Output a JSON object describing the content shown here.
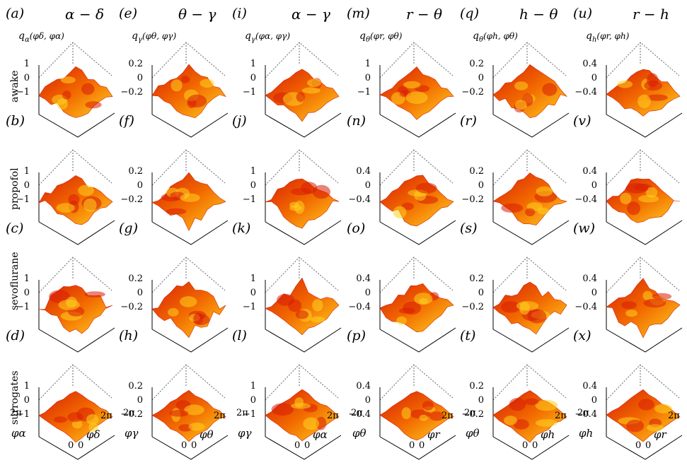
{
  "columns": [
    {
      "id": "a-d",
      "letters": [
        "(a)",
        "(b)",
        "(c)",
        "(d)"
      ],
      "title": "α − δ",
      "zlabel": "q",
      "zlabel_sub": "α",
      "zlabel_args": "(φδ, φα)",
      "x_axis": "φα",
      "y_axis": "φδ",
      "ticks_sets": [
        [
          "1",
          "0",
          "−1"
        ],
        [
          "1",
          "0",
          "−1"
        ],
        [
          "1",
          "0",
          "−1"
        ],
        [
          "1",
          "0",
          "−1"
        ]
      ]
    },
    {
      "id": "e-h",
      "letters": [
        "(e)",
        "(f)",
        "(g)",
        "(h)"
      ],
      "title": "θ − γ",
      "zlabel": "q",
      "zlabel_sub": "γ",
      "zlabel_args": "(φθ, φγ)",
      "x_axis": "φγ",
      "y_axis": "φθ",
      "ticks_sets": [
        [
          "0.2",
          "0",
          "−0.2"
        ],
        [
          "0.2",
          "0",
          "−0.2"
        ],
        [
          "0.2",
          "0",
          "−0.2"
        ],
        [
          "0.2",
          "0",
          "−0.2"
        ]
      ]
    },
    {
      "id": "i-l",
      "letters": [
        "(i)",
        "(j)",
        "(k)",
        "(l)"
      ],
      "title": "α − γ",
      "zlabel": "q",
      "zlabel_sub": "γ",
      "zlabel_args": "(φα, φγ)",
      "x_axis": "φγ",
      "y_axis": "φα",
      "ticks_sets": [
        [
          "1",
          "0",
          "−1"
        ],
        [
          "1",
          "0",
          "−1"
        ],
        [
          "1",
          "0",
          "−1"
        ],
        [
          "1",
          "0",
          "−1"
        ]
      ]
    },
    {
      "id": "m-p",
      "letters": [
        "(m)",
        "(n)",
        "(o)",
        "(p)"
      ],
      "title": "r − θ",
      "zlabel": "q",
      "zlabel_sub": "θ",
      "zlabel_args": "(φr, φθ)",
      "x_axis": "φθ",
      "y_axis": "φr",
      "ticks_sets": [
        [
          "1",
          "0",
          "−1"
        ],
        [
          "0.4",
          "0",
          "−0.4"
        ],
        [
          "0.4",
          "0",
          "−0.4"
        ],
        [
          "0.4",
          "0",
          "−0.4"
        ]
      ]
    },
    {
      "id": "q-t",
      "letters": [
        "(q)",
        "(r)",
        "(s)",
        "(t)"
      ],
      "title": "h − θ",
      "zlabel": "q",
      "zlabel_sub": "θ",
      "zlabel_args": "(φh, φθ)",
      "x_axis": "φθ",
      "y_axis": "φh",
      "ticks_sets": [
        [
          "0.2",
          "0",
          "−0.2"
        ],
        [
          "0.2",
          "0",
          "−0.2"
        ],
        [
          "0.2",
          "0",
          "−0.2"
        ],
        [
          "0.2",
          "0",
          "−0.2"
        ]
      ]
    },
    {
      "id": "u-x",
      "letters": [
        "(u)",
        "(v)",
        "(w)",
        "(x)"
      ],
      "title": "r − h",
      "zlabel": "q",
      "zlabel_sub": "h",
      "zlabel_args": "(φr, φh)",
      "x_axis": "φh",
      "y_axis": "φr",
      "ticks_sets": [
        [
          "0.4",
          "0",
          "−0.4"
        ],
        [
          "0.4",
          "0",
          "−0.4"
        ],
        [
          "0.4",
          "0",
          "−0.4"
        ],
        [
          "0.4",
          "0",
          "−0.4"
        ]
      ]
    }
  ],
  "rows": [
    "awake",
    "propofol",
    "sevoflurane",
    "surrogates"
  ],
  "axis_ticks": {
    "two_pi": "2π",
    "zero": "0"
  },
  "colors": {
    "surface_low": "#d81e05",
    "surface_mid": "#f26a00",
    "surface_high": "#ffd21f",
    "box": "#666666"
  }
}
